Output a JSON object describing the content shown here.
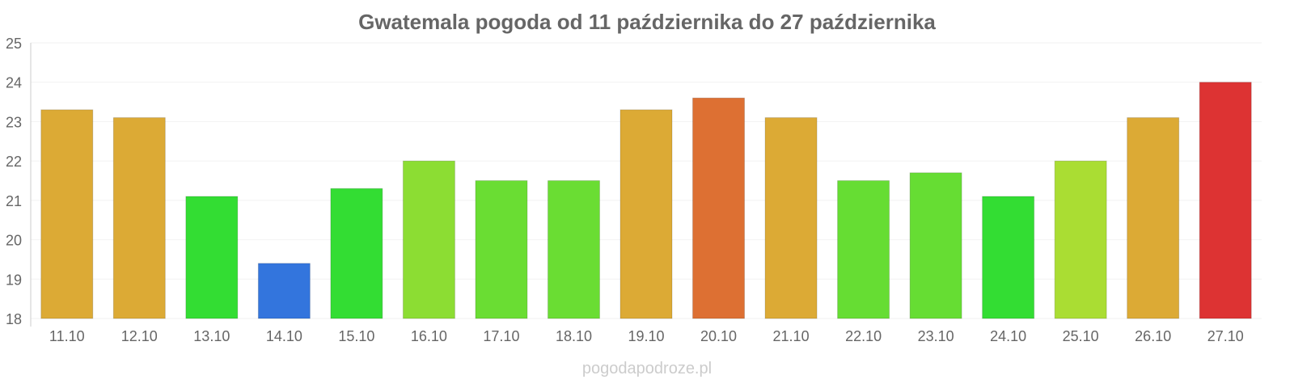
{
  "chart_data": {
    "type": "bar",
    "title": "Gwatemala pogoda od 11 października do 27 października",
    "xlabel": "",
    "ylabel": "",
    "ylim": [
      18,
      25
    ],
    "yticks": [
      "18",
      "19",
      "20",
      "21",
      "22",
      "23",
      "24",
      "25"
    ],
    "grid": true,
    "categories": [
      "11.10",
      "12.10",
      "13.10",
      "14.10",
      "15.10",
      "16.10",
      "17.10",
      "18.10",
      "19.10",
      "20.10",
      "21.10",
      "22.10",
      "23.10",
      "24.10",
      "25.10",
      "26.10",
      "27.10"
    ],
    "values": [
      23.3,
      23.1,
      21.1,
      19.4,
      21.3,
      22.0,
      21.5,
      21.5,
      23.3,
      23.6,
      23.1,
      21.5,
      21.7,
      21.1,
      22.0,
      23.1,
      24.0
    ],
    "colors": [
      "#dcaa35",
      "#dcaa35",
      "#33dd33",
      "#3375dd",
      "#33dd33",
      "#8cdd33",
      "#6add33",
      "#6add33",
      "#dcaa35",
      "#dd7033",
      "#dcaa35",
      "#66dd33",
      "#66dd33",
      "#33dd33",
      "#aadd33",
      "#dcaa35",
      "#dd3333"
    ]
  },
  "watermark": "pogodapodroze.pl"
}
